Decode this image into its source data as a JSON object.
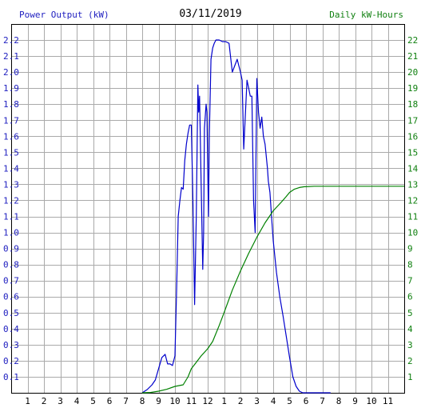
{
  "header": {
    "left_title": "Power Output (kW)",
    "date": "03/11/2019",
    "right_title": "Daily kW-Hours"
  },
  "chart_data": {
    "type": "line",
    "x_ticks": [
      "1",
      "2",
      "3",
      "4",
      "5",
      "6",
      "7",
      "8",
      "9",
      "10",
      "11",
      "12",
      "1",
      "2",
      "3",
      "4",
      "5",
      "6",
      "7",
      "8",
      "9",
      "10",
      "11"
    ],
    "y_left": {
      "label": "Power Output (kW)",
      "range": [
        0,
        2.3
      ],
      "ticks": [
        "0.1",
        "0.2",
        "0.3",
        "0.4",
        "0.5",
        "0.6",
        "0.7",
        "0.8",
        "0.9",
        "1.0",
        "1.1",
        "1.2",
        "1.3",
        "1.4",
        "1.5",
        "1.6",
        "1.7",
        "1.8",
        "1.9",
        "2.0",
        "2.1",
        "2.2"
      ]
    },
    "y_right": {
      "label": "Daily kW-Hours",
      "range": [
        0,
        23
      ],
      "ticks": [
        "1",
        "2",
        "3",
        "4",
        "5",
        "6",
        "7",
        "8",
        "9",
        "10",
        "11",
        "12",
        "13",
        "14",
        "15",
        "16",
        "17",
        "18",
        "19",
        "20",
        "21",
        "22"
      ]
    },
    "grid": true,
    "colors": {
      "power": "#0000cc",
      "energy": "#008000",
      "grid": "#aaaaaa",
      "left_axis": "#2020c0",
      "right_axis": "#108010"
    },
    "series": [
      {
        "name": "Power Output (kW)",
        "axis": "left",
        "x": [
          8.0,
          8.3,
          8.6,
          8.8,
          9.0,
          9.2,
          9.4,
          9.55,
          9.7,
          9.85,
          10.0,
          10.1,
          10.2,
          10.3,
          10.4,
          10.5,
          10.6,
          10.7,
          10.8,
          10.9,
          11.0,
          11.1,
          11.2,
          11.3,
          11.4,
          11.45,
          11.5,
          11.6,
          11.7,
          11.75,
          11.8,
          11.9,
          11.95,
          12.0,
          12.05,
          12.1,
          12.2,
          12.3,
          12.4,
          12.5,
          12.7,
          12.9,
          13.1,
          13.3,
          13.5,
          13.8,
          14.0,
          14.1,
          14.2,
          14.4,
          14.5,
          14.6,
          14.7,
          14.8,
          14.9,
          15.0,
          15.1,
          15.2,
          15.3,
          15.4,
          15.5,
          15.55,
          15.6,
          15.65,
          15.7,
          15.8,
          15.9,
          16.0,
          16.2,
          16.4,
          16.6,
          16.8,
          17.0,
          17.2,
          17.4,
          17.6,
          17.8,
          18.0,
          18.2,
          18.4,
          18.6,
          18.8,
          19.0,
          19.2,
          19.4,
          19.5
        ],
        "values": [
          0.0,
          0.02,
          0.05,
          0.08,
          0.15,
          0.22,
          0.24,
          0.18,
          0.18,
          0.17,
          0.23,
          0.65,
          1.1,
          1.2,
          1.28,
          1.27,
          1.45,
          1.55,
          1.62,
          1.67,
          1.67,
          1.2,
          0.55,
          1.1,
          1.92,
          1.75,
          1.85,
          1.3,
          0.77,
          1.0,
          1.65,
          1.8,
          1.75,
          1.4,
          1.1,
          1.6,
          2.08,
          2.15,
          2.18,
          2.2,
          2.2,
          2.19,
          2.19,
          2.18,
          2.0,
          2.08,
          2.0,
          1.95,
          1.52,
          1.95,
          1.9,
          1.85,
          1.85,
          1.2,
          1.0,
          1.96,
          1.75,
          1.65,
          1.72,
          1.6,
          1.55,
          1.5,
          1.45,
          1.4,
          1.32,
          1.25,
          1.1,
          0.95,
          0.75,
          0.6,
          0.48,
          0.35,
          0.22,
          0.1,
          0.04,
          0.01,
          0.0,
          0.0,
          0.0,
          0.0,
          0.0,
          0.0,
          0.0,
          0.0,
          0.0,
          0.0
        ]
      },
      {
        "name": "Daily kW-Hours",
        "axis": "right",
        "x": [
          8.0,
          8.5,
          9.0,
          9.5,
          10.0,
          10.5,
          10.8,
          11.0,
          11.3,
          11.6,
          12.0,
          12.3,
          12.7,
          13.0,
          13.5,
          14.0,
          14.5,
          15.0,
          15.5,
          16.0,
          16.5,
          16.8,
          17.0,
          17.3,
          17.6,
          17.9,
          18.0,
          18.5,
          19.0,
          20.0,
          21.0,
          22.0,
          23.0,
          24.0
        ],
        "values": [
          0.0,
          0.02,
          0.1,
          0.22,
          0.4,
          0.5,
          1.0,
          1.5,
          1.9,
          2.3,
          2.75,
          3.2,
          4.2,
          5.0,
          6.4,
          7.6,
          8.7,
          9.7,
          10.6,
          11.35,
          11.9,
          12.25,
          12.5,
          12.7,
          12.8,
          12.85,
          12.85,
          12.88,
          12.88,
          12.88,
          12.88,
          12.88,
          12.88,
          12.88
        ]
      }
    ]
  }
}
